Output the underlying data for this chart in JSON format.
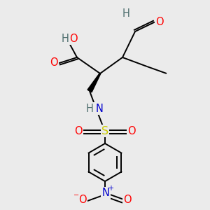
{
  "background_color": "#ebebeb",
  "atom_colors": {
    "C": "#000000",
    "O": "#ff0000",
    "N": "#0000cc",
    "S": "#cccc00",
    "H": "#507070"
  },
  "bond_color": "#000000",
  "figsize": [
    3.0,
    3.0
  ],
  "dpi": 100
}
